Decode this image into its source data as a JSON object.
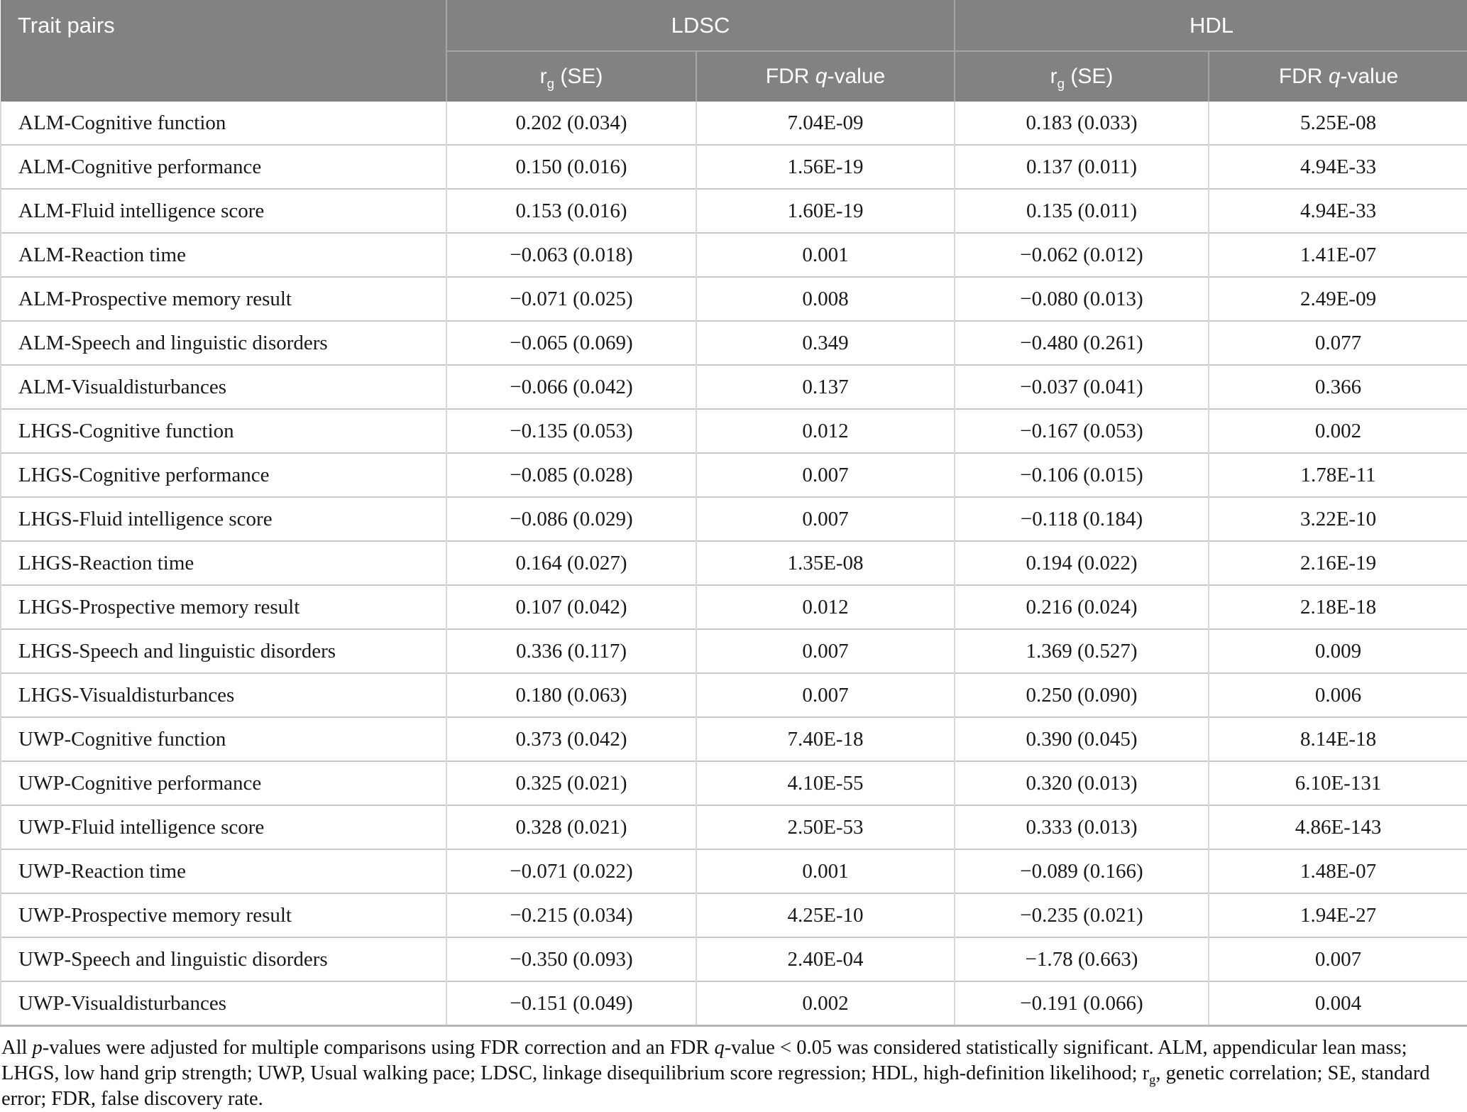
{
  "table": {
    "header": {
      "trait_pairs": "Trait pairs",
      "group_ldsc": "LDSC",
      "group_hdl": "HDL",
      "subheaders": [
        [
          {
            "t": "r"
          },
          {
            "t": "g",
            "sub": true
          },
          {
            "t": " (SE)"
          }
        ],
        [
          {
            "t": "FDR "
          },
          {
            "t": "q",
            "i": true
          },
          {
            "t": "-value"
          }
        ],
        [
          {
            "t": "r"
          },
          {
            "t": "g",
            "sub": true
          },
          {
            "t": " (SE)"
          }
        ],
        [
          {
            "t": "FDR "
          },
          {
            "t": "q",
            "i": true
          },
          {
            "t": "-value"
          }
        ]
      ]
    },
    "rows": [
      {
        "trait": "ALM-Cognitive function",
        "ldsc_rg": "0.202 (0.034)",
        "ldsc_q": "7.04E-09",
        "hdl_rg": "0.183 (0.033)",
        "hdl_q": "5.25E-08"
      },
      {
        "trait": "ALM-Cognitive performance",
        "ldsc_rg": "0.150 (0.016)",
        "ldsc_q": "1.56E-19",
        "hdl_rg": "0.137 (0.011)",
        "hdl_q": "4.94E-33"
      },
      {
        "trait": "ALM-Fluid intelligence score",
        "ldsc_rg": "0.153 (0.016)",
        "ldsc_q": "1.60E-19",
        "hdl_rg": "0.135 (0.011)",
        "hdl_q": "4.94E-33"
      },
      {
        "trait": "ALM-Reaction time",
        "ldsc_rg": "−0.063 (0.018)",
        "ldsc_q": "0.001",
        "hdl_rg": "−0.062 (0.012)",
        "hdl_q": "1.41E-07"
      },
      {
        "trait": "ALM-Prospective memory result",
        "ldsc_rg": "−0.071 (0.025)",
        "ldsc_q": "0.008",
        "hdl_rg": "−0.080 (0.013)",
        "hdl_q": "2.49E-09"
      },
      {
        "trait": "ALM-Speech and linguistic disorders",
        "ldsc_rg": "−0.065 (0.069)",
        "ldsc_q": "0.349",
        "hdl_rg": "−0.480 (0.261)",
        "hdl_q": "0.077"
      },
      {
        "trait": "ALM-Visualdisturbances",
        "ldsc_rg": "−0.066 (0.042)",
        "ldsc_q": "0.137",
        "hdl_rg": "−0.037 (0.041)",
        "hdl_q": "0.366"
      },
      {
        "trait": "LHGS-Cognitive function",
        "ldsc_rg": "−0.135 (0.053)",
        "ldsc_q": "0.012",
        "hdl_rg": "−0.167 (0.053)",
        "hdl_q": "0.002"
      },
      {
        "trait": "LHGS-Cognitive performance",
        "ldsc_rg": "−0.085 (0.028)",
        "ldsc_q": "0.007",
        "hdl_rg": "−0.106 (0.015)",
        "hdl_q": "1.78E-11"
      },
      {
        "trait": "LHGS-Fluid intelligence score",
        "ldsc_rg": "−0.086 (0.029)",
        "ldsc_q": "0.007",
        "hdl_rg": "−0.118 (0.184)",
        "hdl_q": "3.22E-10"
      },
      {
        "trait": "LHGS-Reaction time",
        "ldsc_rg": "0.164 (0.027)",
        "ldsc_q": "1.35E-08",
        "hdl_rg": "0.194 (0.022)",
        "hdl_q": "2.16E-19"
      },
      {
        "trait": "LHGS-Prospective memory result",
        "ldsc_rg": "0.107 (0.042)",
        "ldsc_q": "0.012",
        "hdl_rg": "0.216 (0.024)",
        "hdl_q": "2.18E-18"
      },
      {
        "trait": "LHGS-Speech and linguistic disorders",
        "ldsc_rg": "0.336 (0.117)",
        "ldsc_q": "0.007",
        "hdl_rg": "1.369 (0.527)",
        "hdl_q": "0.009"
      },
      {
        "trait": "LHGS-Visualdisturbances",
        "ldsc_rg": "0.180 (0.063)",
        "ldsc_q": "0.007",
        "hdl_rg": "0.250 (0.090)",
        "hdl_q": "0.006"
      },
      {
        "trait": "UWP-Cognitive function",
        "ldsc_rg": "0.373 (0.042)",
        "ldsc_q": "7.40E-18",
        "hdl_rg": "0.390 (0.045)",
        "hdl_q": "8.14E-18"
      },
      {
        "trait": "UWP-Cognitive performance",
        "ldsc_rg": "0.325 (0.021)",
        "ldsc_q": "4.10E-55",
        "hdl_rg": "0.320 (0.013)",
        "hdl_q": "6.10E-131"
      },
      {
        "trait": "UWP-Fluid intelligence score",
        "ldsc_rg": "0.328 (0.021)",
        "ldsc_q": "2.50E-53",
        "hdl_rg": "0.333 (0.013)",
        "hdl_q": "4.86E-143"
      },
      {
        "trait": "UWP-Reaction time",
        "ldsc_rg": "−0.071 (0.022)",
        "ldsc_q": "0.001",
        "hdl_rg": "−0.089 (0.166)",
        "hdl_q": "1.48E-07"
      },
      {
        "trait": "UWP-Prospective memory result",
        "ldsc_rg": "−0.215 (0.034)",
        "ldsc_q": "4.25E-10",
        "hdl_rg": "−0.235 (0.021)",
        "hdl_q": "1.94E-27"
      },
      {
        "trait": "UWP-Speech and linguistic disorders",
        "ldsc_rg": "−0.350 (0.093)",
        "ldsc_q": "2.40E-04",
        "hdl_rg": "−1.78 (0.663)",
        "hdl_q": "0.007"
      },
      {
        "trait": "UWP-Visualdisturbances",
        "ldsc_rg": "−0.151 (0.049)",
        "ldsc_q": "0.002",
        "hdl_rg": "−0.191 (0.066)",
        "hdl_q": "0.004"
      }
    ]
  },
  "footnote": [
    {
      "t": "All "
    },
    {
      "t": "p",
      "i": true
    },
    {
      "t": "-values were adjusted for multiple comparisons using FDR correction and an FDR "
    },
    {
      "t": "q",
      "i": true
    },
    {
      "t": "-value < 0.05 was considered statistically significant. ALM, appendicular lean mass; LHGS, low hand grip strength; UWP, Usual walking pace; LDSC, linkage disequilibrium score regression; HDL, high-definition likelihood; r"
    },
    {
      "t": "g",
      "sub": true
    },
    {
      "t": ", genetic correlation; SE, standard error; FDR, false discovery rate."
    }
  ]
}
